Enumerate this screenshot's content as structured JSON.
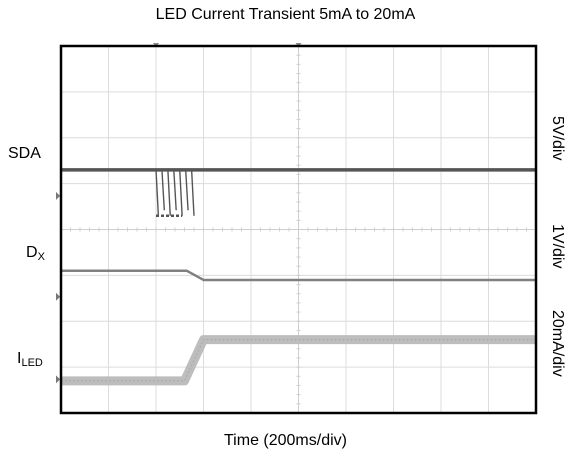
{
  "chart_data": {
    "type": "line",
    "title": "LED Current Transient 5mA to 20mA",
    "xlabel": "Time (200ms/div)",
    "x_divisions": 10,
    "y_divisions": 8,
    "grid": true,
    "channels": [
      {
        "name": "SDA",
        "name_main": "SDA",
        "name_sub": "",
        "scale": "5V/div",
        "color": "#555555",
        "level_div": 5.3,
        "points": [
          [
            0,
            5.3
          ],
          [
            10,
            5.3
          ]
        ],
        "burst": {
          "start_div": 2.0,
          "end_div": 2.75,
          "low_div": 4.3
        }
      },
      {
        "name": "DX",
        "name_main": "D",
        "name_sub": "X",
        "scale": "1V/div",
        "color": "#808080",
        "level_div": 3.1,
        "points": [
          [
            0,
            3.1
          ],
          [
            2.65,
            3.1
          ],
          [
            3.0,
            2.9
          ],
          [
            10,
            2.9
          ]
        ]
      },
      {
        "name": "ILED",
        "name_main": "I",
        "name_sub": "LED",
        "scale": "20mA/div",
        "color": "#bdbdbd",
        "level_div": 1.3,
        "points": [
          [
            0,
            0.7
          ],
          [
            2.6,
            0.7
          ],
          [
            3.0,
            1.6
          ],
          [
            10,
            1.6
          ]
        ]
      }
    ]
  }
}
